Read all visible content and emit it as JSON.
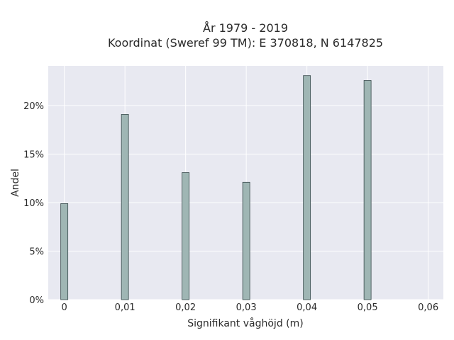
{
  "chart_data": {
    "type": "bar",
    "title_line1": "År 1979 - 2019",
    "title_line2": "Koordinat (Sweref 99 TM): E 370818, N 6147825",
    "xlabel": "Signifikant våghöjd (m)",
    "ylabel": "Andel",
    "x_ticks": [
      "0",
      "0,01",
      "0,02",
      "0,03",
      "0,04",
      "0,05",
      "0,06"
    ],
    "x_tick_values": [
      0,
      0.01,
      0.02,
      0.03,
      0.04,
      0.05,
      0.06
    ],
    "y_ticks": [
      "0%",
      "5%",
      "10%",
      "15%",
      "20%"
    ],
    "y_tick_values": [
      0,
      5,
      10,
      15,
      20
    ],
    "xlim": [
      -0.00265,
      0.0625
    ],
    "ylim": [
      0,
      24.1
    ],
    "x": [
      0,
      0.01,
      0.02,
      0.03,
      0.04,
      0.05
    ],
    "values": [
      9.9,
      19.1,
      13.1,
      12.1,
      23.1,
      22.6
    ],
    "bar_color": "#9fb6b4",
    "bar_edge_color": "#36484a",
    "plot_background": "#e8e9f1",
    "grid": true,
    "grid_color": "#ffffff"
  }
}
